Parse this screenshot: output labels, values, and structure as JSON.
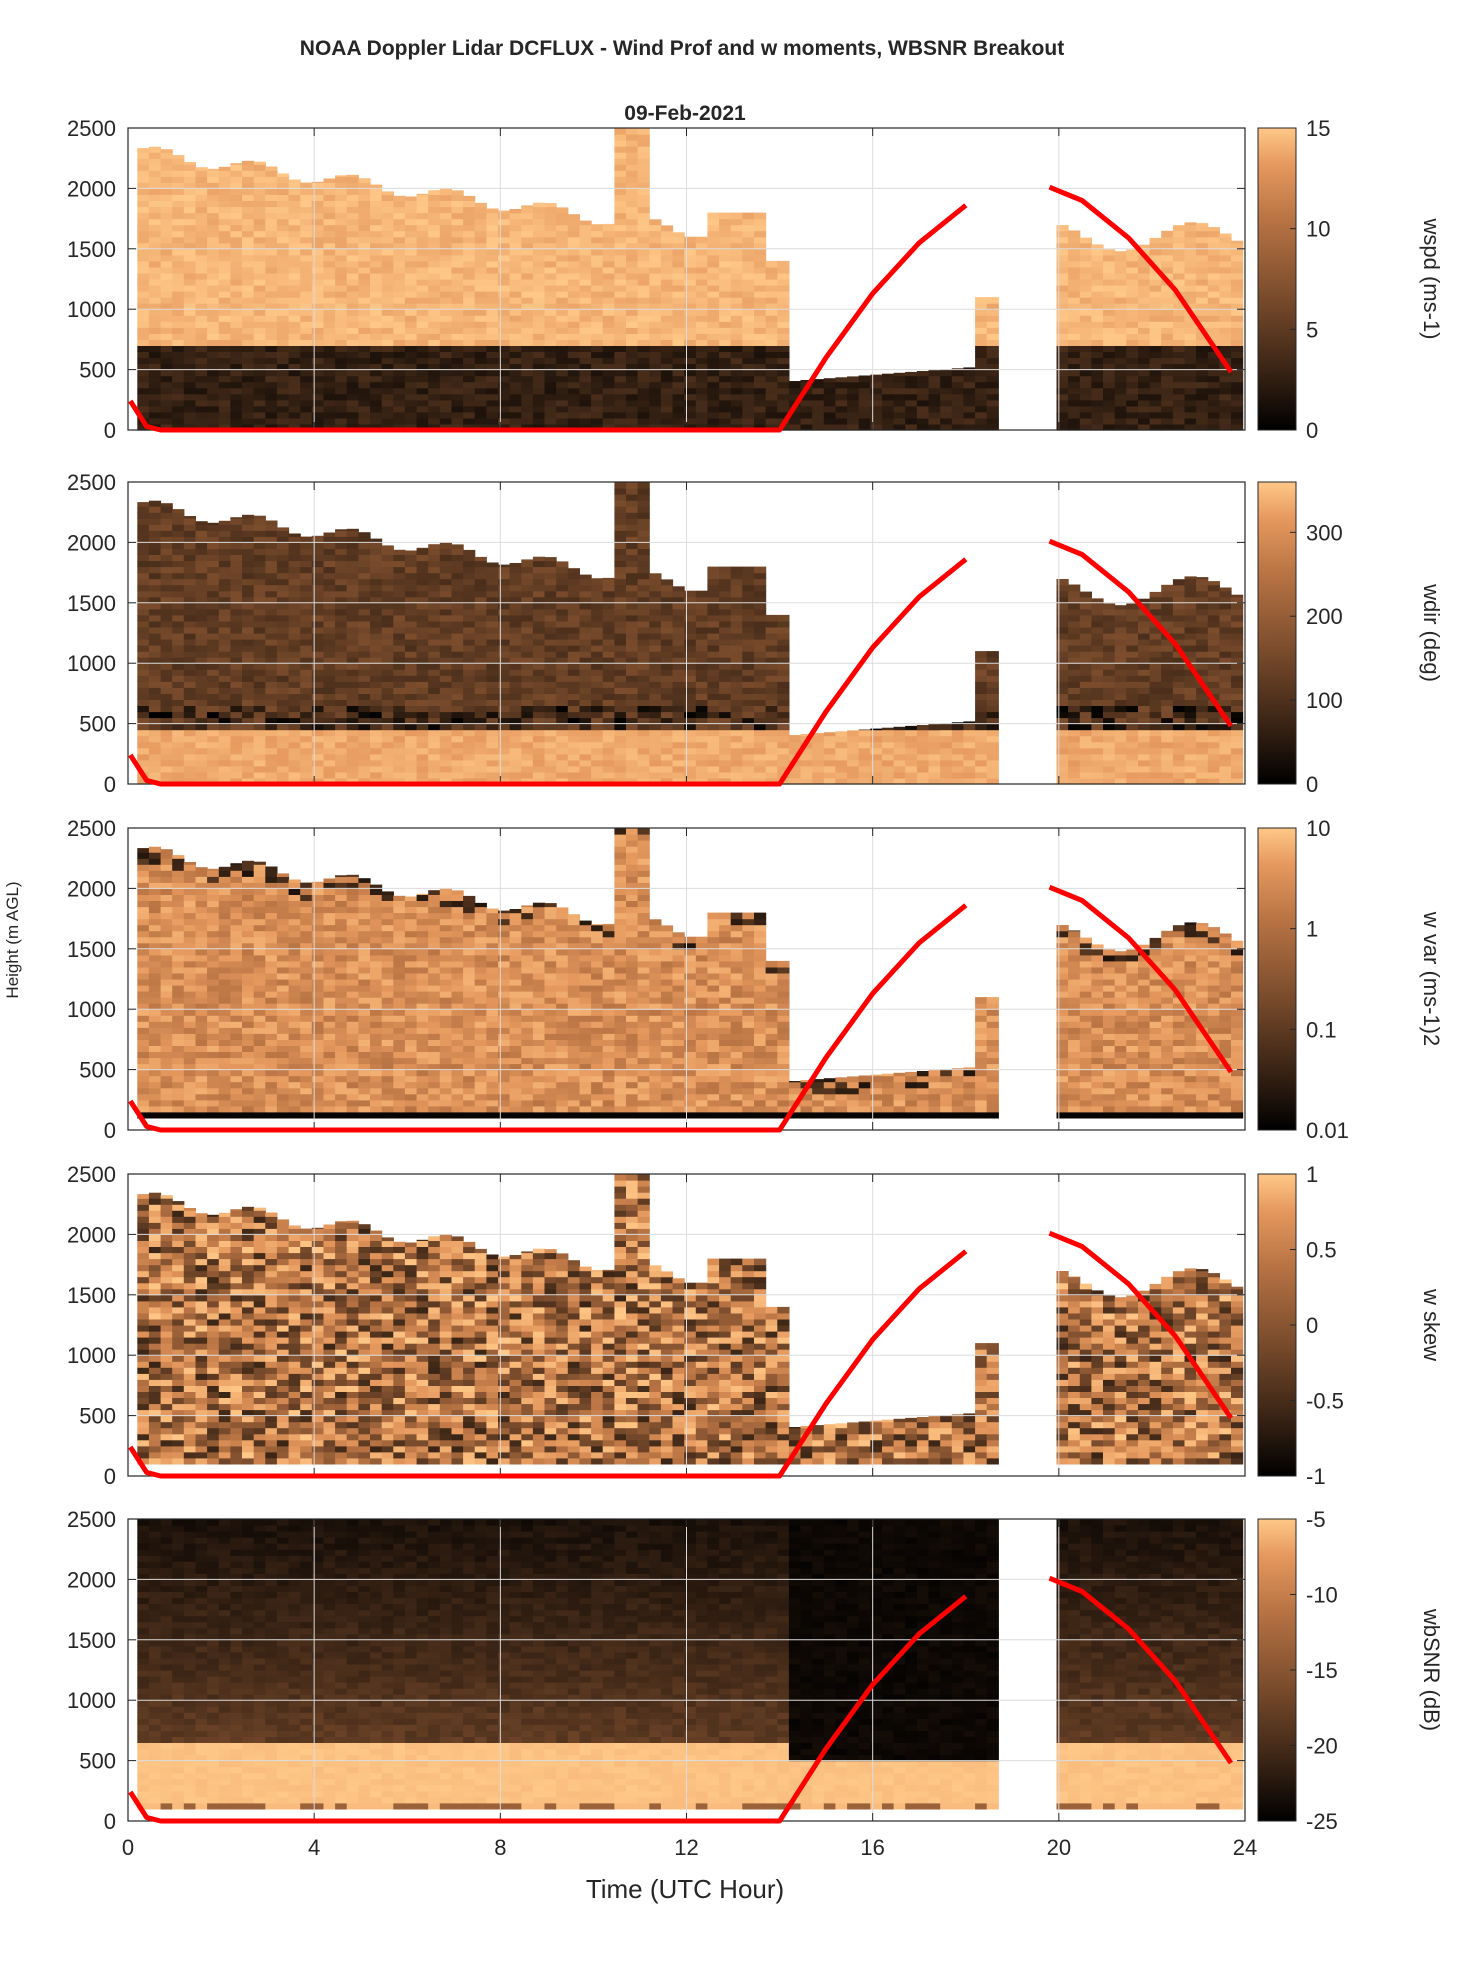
{
  "figure": {
    "title": "NOAA Doppler Lidar DCFLUX - Wind Prof and w moments, WBSNR Breakout",
    "subtitle": "09-Feb-2021",
    "xlabel": "Time (UTC Hour)",
    "ylabel": "Height (m AGL)"
  },
  "colors": {
    "sun_line": "#ff0000",
    "colormap": [
      "#000000",
      "#3a2415",
      "#7c4d2d",
      "#b97444",
      "#e6995e",
      "#ffc888"
    ],
    "axes": "#262626",
    "grid": "#dcdcdc"
  },
  "chart_data": {
    "type": "heatmap",
    "x_range": [
      0,
      24
    ],
    "y_range": [
      0,
      2500
    ],
    "x_ticks": [
      "0",
      "4",
      "8",
      "12",
      "16",
      "20",
      "24"
    ],
    "y_ticks": [
      "0",
      "500",
      "1000",
      "1500",
      "2000",
      "2500"
    ],
    "grid": true,
    "data_gap_utc": [
      18.5,
      19.8
    ],
    "solar_elevation_line": {
      "name": "",
      "x": [
        0.05,
        0.4,
        0.7,
        14.0,
        15.0,
        16.0,
        17.0,
        18.0,
        19.8,
        20.5,
        21.5,
        22.5,
        23.7
      ],
      "y": [
        240,
        30,
        0,
        0,
        600,
        1130,
        1550,
        1860,
        2010,
        1900,
        1590,
        1160,
        480
      ]
    },
    "panels": [
      {
        "variable": "wspd",
        "colorbar_label": "wspd (ms-1)",
        "cb_ticks": [
          "0",
          "5",
          "10",
          "15"
        ],
        "cb_range": [
          0,
          15
        ],
        "scale": "linear"
      },
      {
        "variable": "wdir",
        "colorbar_label": "wdir (deg)",
        "cb_ticks": [
          "0",
          "100",
          "200",
          "300"
        ],
        "cb_range": [
          0,
          360
        ],
        "scale": "linear"
      },
      {
        "variable": "w var",
        "colorbar_label": "w var (ms-1)2",
        "cb_ticks": [
          "0.01",
          "0.1",
          "1",
          "10"
        ],
        "cb_range": [
          0.01,
          10
        ],
        "scale": "log"
      },
      {
        "variable": "w skew",
        "colorbar_label": "w skew",
        "cb_ticks": [
          "-1",
          "-0.5",
          "0",
          "0.5",
          "1"
        ],
        "cb_range": [
          -1,
          1
        ],
        "scale": "linear"
      },
      {
        "variable": "wbSNR",
        "colorbar_label": "wbSNR (dB)",
        "cb_ticks": [
          "-25",
          "-20",
          "-15",
          "-10",
          "-5"
        ],
        "cb_range": [
          -25,
          -5
        ],
        "scale": "linear"
      }
    ]
  }
}
